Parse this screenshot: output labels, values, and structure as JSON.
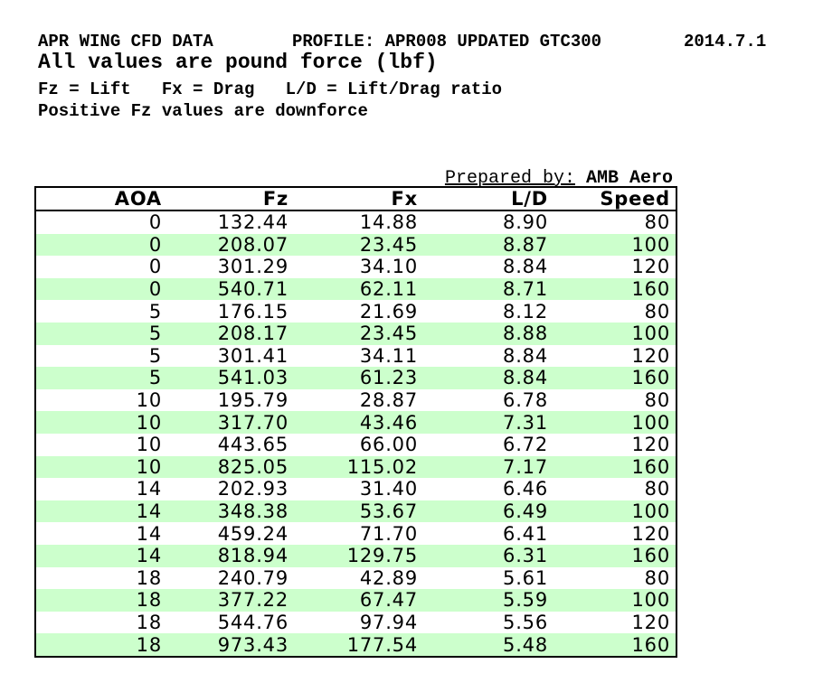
{
  "header": {
    "title": "APR WING CFD DATA",
    "profile": "PROFILE: APR008 UPDATED GTC300",
    "date": "2014.7.1",
    "subtitle": "All values are pound force (lbf)",
    "legend": "Fz = Lift   Fx = Drag   L/D = Lift/Drag ratio",
    "note": "Positive Fz values are downforce"
  },
  "prepared_by": {
    "label": "Prepared by:",
    "value": "AMB Aero"
  },
  "table": {
    "columns": [
      "AOA",
      "Fz",
      "Fx",
      "L/D",
      "Speed"
    ],
    "col_keys": [
      "aoa",
      "fz",
      "fx",
      "ld",
      "speed"
    ],
    "rows": [
      [
        "0",
        "132.44",
        "14.88",
        "8.90",
        "80"
      ],
      [
        "0",
        "208.07",
        "23.45",
        "8.87",
        "100"
      ],
      [
        "0",
        "301.29",
        "34.10",
        "8.84",
        "120"
      ],
      [
        "0",
        "540.71",
        "62.11",
        "8.71",
        "160"
      ],
      [
        "5",
        "176.15",
        "21.69",
        "8.12",
        "80"
      ],
      [
        "5",
        "208.17",
        "23.45",
        "8.88",
        "100"
      ],
      [
        "5",
        "301.41",
        "34.11",
        "8.84",
        "120"
      ],
      [
        "5",
        "541.03",
        "61.23",
        "8.84",
        "160"
      ],
      [
        "10",
        "195.79",
        "28.87",
        "6.78",
        "80"
      ],
      [
        "10",
        "317.70",
        "43.46",
        "7.31",
        "100"
      ],
      [
        "10",
        "443.65",
        "66.00",
        "6.72",
        "120"
      ],
      [
        "10",
        "825.05",
        "115.02",
        "7.17",
        "160"
      ],
      [
        "14",
        "202.93",
        "31.40",
        "6.46",
        "80"
      ],
      [
        "14",
        "348.38",
        "53.67",
        "6.49",
        "100"
      ],
      [
        "14",
        "459.24",
        "71.70",
        "6.41",
        "120"
      ],
      [
        "14",
        "818.94",
        "129.75",
        "6.31",
        "160"
      ],
      [
        "18",
        "240.79",
        "42.89",
        "5.61",
        "80"
      ],
      [
        "18",
        "377.22",
        "67.47",
        "5.59",
        "100"
      ],
      [
        "18",
        "544.76",
        "97.94",
        "5.56",
        "120"
      ],
      [
        "18",
        "973.43",
        "177.54",
        "5.48",
        "160"
      ]
    ]
  },
  "colors": {
    "row_alt": "#ccffcc",
    "border": "#000000",
    "text": "#000000",
    "background": "#ffffff"
  }
}
